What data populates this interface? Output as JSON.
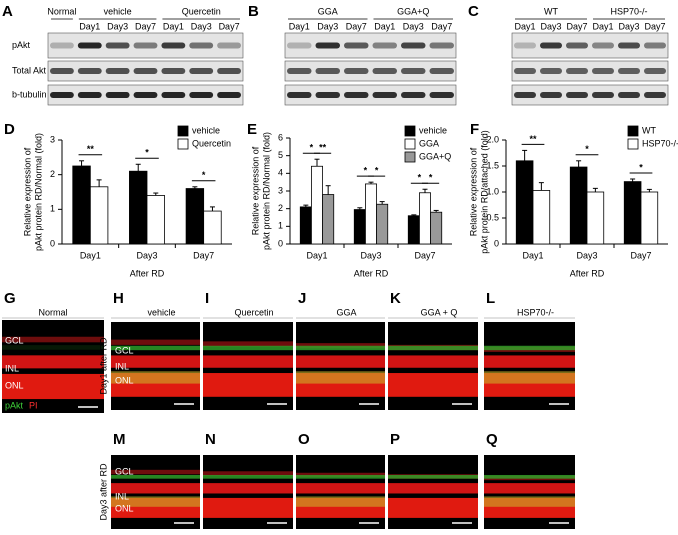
{
  "blots": [
    {
      "letter": "A",
      "groups": [
        "Normal",
        "vehicle",
        "Quercetin"
      ],
      "days": [
        "Day1",
        "Day3",
        "Day7"
      ],
      "rows": [
        "pAkt",
        "Total Akt",
        "b-tubulin"
      ]
    },
    {
      "letter": "B",
      "groups": [
        "GGA",
        "GGA+Q"
      ],
      "days": [
        "Day1",
        "Day3",
        "Day7"
      ]
    },
    {
      "letter": "C",
      "groups": [
        "WT",
        "HSP70-/-"
      ],
      "days": [
        "Day1",
        "Day3",
        "Day7"
      ]
    }
  ],
  "chart_data": [
    {
      "type": "bar",
      "panel": "D",
      "y_label": [
        "Relative expression of",
        "pAkt protein RD/Normal (fold)"
      ],
      "x_label": "After RD",
      "categories": [
        "Day1",
        "Day3",
        "Day7"
      ],
      "ylim": [
        0,
        3
      ],
      "yticks": [
        0,
        1,
        2,
        3
      ],
      "series": [
        {
          "name": "vehicle",
          "color": "#000000",
          "values": [
            2.25,
            2.1,
            1.6
          ],
          "errors": [
            0.15,
            0.2,
            0.05
          ]
        },
        {
          "name": "Quercetin",
          "color": "#ffffff",
          "values": [
            1.65,
            1.4,
            0.95
          ],
          "errors": [
            0.2,
            0.07,
            0.12
          ]
        }
      ],
      "significance": [
        [
          "**"
        ],
        [
          "*"
        ],
        [
          "*"
        ]
      ]
    },
    {
      "type": "bar",
      "panel": "E",
      "y_label": [
        "Relative expression of",
        "pAkt protein RD/Normal (fold)"
      ],
      "x_label": "After RD",
      "categories": [
        "Day1",
        "Day3",
        "Day7"
      ],
      "ylim": [
        0,
        6
      ],
      "yticks": [
        0,
        1,
        2,
        3,
        4,
        5,
        6
      ],
      "series": [
        {
          "name": "vehicle",
          "color": "#000000",
          "values": [
            2.1,
            1.95,
            1.6
          ],
          "errors": [
            0.1,
            0.1,
            0.05
          ]
        },
        {
          "name": "GGA",
          "color": "#ffffff",
          "values": [
            4.4,
            3.4,
            2.9
          ],
          "errors": [
            0.4,
            0.1,
            0.2
          ]
        },
        {
          "name": "GGA+Q",
          "color": "#999999",
          "values": [
            2.8,
            2.25,
            1.8
          ],
          "errors": [
            0.5,
            0.15,
            0.1
          ]
        }
      ],
      "significance": [
        [
          "*",
          "**"
        ],
        [
          "*",
          "*"
        ],
        [
          "*",
          "*"
        ]
      ]
    },
    {
      "type": "bar",
      "panel": "F",
      "y_label": [
        "Relative expression of",
        "pAkt protein RD/attached (fold)"
      ],
      "x_label": "After RD",
      "categories": [
        "Day1",
        "Day3",
        "Day7"
      ],
      "ylim": [
        0,
        2
      ],
      "yticks": [
        0,
        0.5,
        {
          "value": 1,
          "label": "1.0"
        },
        1.5,
        {
          "value": 2,
          "label": "2.0"
        }
      ],
      "series": [
        {
          "name": "WT",
          "color": "#000000",
          "values": [
            1.6,
            1.48,
            1.2
          ],
          "errors": [
            0.2,
            0.12,
            0.05
          ]
        },
        {
          "name": "HSP70-/-",
          "color": "#ffffff",
          "values": [
            1.03,
            1.0,
            1.0
          ],
          "errors": [
            0.15,
            0.07,
            0.05
          ]
        }
      ],
      "significance": [
        [
          "**"
        ],
        [
          "*"
        ],
        [
          "*"
        ]
      ]
    }
  ],
  "microscopy": {
    "row1": [
      {
        "letter": "G",
        "label": "Normal"
      },
      {
        "letter": "H",
        "label": "vehicle"
      },
      {
        "letter": "I",
        "label": "Quercetin"
      },
      {
        "letter": "J",
        "label": "GGA"
      },
      {
        "letter": "K",
        "label": "GGA + Q"
      },
      {
        "letter": "L",
        "label": "HSP70-/-"
      }
    ],
    "row2": [
      "M",
      "N",
      "O",
      "P",
      "Q"
    ],
    "layers": [
      "GCL",
      "INL",
      "ONL"
    ],
    "stains": [
      "pAkt",
      "PI"
    ],
    "row_labels": [
      "Day1 after RD",
      "Day3 after RD"
    ]
  }
}
